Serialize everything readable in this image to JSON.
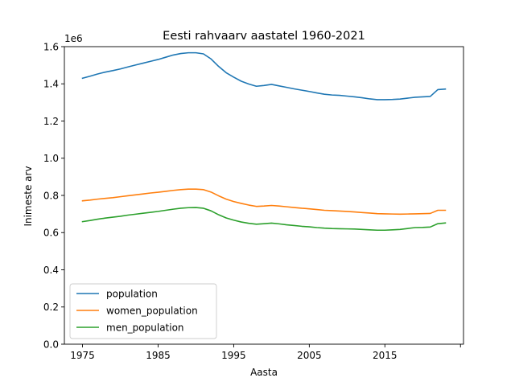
{
  "chart_data": {
    "type": "line",
    "title": "Eesti rahvaarv aastatel 1960-2021",
    "xlabel": "Aasta",
    "ylabel": "Inimeste arv",
    "y_offset_label": "1e6",
    "xlim": [
      1972.6,
      2025.4
    ],
    "ylim": [
      0,
      1.6
    ],
    "x_ticks": [
      1975,
      1985,
      1995,
      2005,
      2015,
      2025
    ],
    "x_tick_labels": [
      "1975",
      "1985",
      "1995",
      "2005",
      "2015",
      ""
    ],
    "y_ticks": [
      0.0,
      0.2,
      0.4,
      0.6,
      0.8,
      1.0,
      1.2,
      1.4,
      1.6
    ],
    "y_tick_labels": [
      "0.0",
      "0.2",
      "0.4",
      "0.6",
      "0.8",
      "1.0",
      "1.2",
      "1.4",
      "1.6"
    ],
    "legend_position": "lower-left",
    "grid": false,
    "x": [
      1975,
      1976,
      1977,
      1978,
      1979,
      1980,
      1981,
      1982,
      1983,
      1984,
      1985,
      1986,
      1987,
      1988,
      1989,
      1990,
      1991,
      1992,
      1993,
      1994,
      1995,
      1996,
      1997,
      1998,
      1999,
      2000,
      2001,
      2002,
      2003,
      2004,
      2005,
      2006,
      2007,
      2008,
      2009,
      2010,
      2011,
      2012,
      2013,
      2014,
      2015,
      2016,
      2017,
      2018,
      2019,
      2020,
      2021,
      2022,
      2023
    ],
    "series": [
      {
        "name": "population",
        "color": "#1f77b4",
        "values": [
          1.43,
          1.441,
          1.453,
          1.463,
          1.471,
          1.48,
          1.491,
          1.501,
          1.511,
          1.521,
          1.531,
          1.543,
          1.555,
          1.563,
          1.567,
          1.567,
          1.561,
          1.534,
          1.494,
          1.46,
          1.436,
          1.414,
          1.399,
          1.387,
          1.391,
          1.397,
          1.389,
          1.381,
          1.373,
          1.366,
          1.359,
          1.351,
          1.344,
          1.34,
          1.338,
          1.334,
          1.33,
          1.325,
          1.319,
          1.315,
          1.315,
          1.316,
          1.318,
          1.323,
          1.328,
          1.33,
          1.332,
          1.369,
          1.372
        ]
      },
      {
        "name": "women_population",
        "color": "#ff7f0e",
        "values": [
          0.771,
          0.775,
          0.78,
          0.784,
          0.788,
          0.793,
          0.798,
          0.803,
          0.808,
          0.813,
          0.817,
          0.822,
          0.827,
          0.831,
          0.834,
          0.834,
          0.831,
          0.818,
          0.798,
          0.78,
          0.767,
          0.757,
          0.748,
          0.741,
          0.743,
          0.746,
          0.743,
          0.739,
          0.735,
          0.731,
          0.728,
          0.724,
          0.72,
          0.718,
          0.716,
          0.714,
          0.711,
          0.708,
          0.705,
          0.702,
          0.701,
          0.7,
          0.699,
          0.7,
          0.701,
          0.702,
          0.703,
          0.72,
          0.72
        ]
      },
      {
        "name": "men_population",
        "color": "#2ca02c",
        "values": [
          0.659,
          0.665,
          0.672,
          0.678,
          0.683,
          0.688,
          0.694,
          0.699,
          0.704,
          0.709,
          0.714,
          0.72,
          0.726,
          0.731,
          0.734,
          0.735,
          0.731,
          0.717,
          0.696,
          0.679,
          0.667,
          0.657,
          0.65,
          0.645,
          0.648,
          0.651,
          0.647,
          0.642,
          0.638,
          0.634,
          0.631,
          0.627,
          0.624,
          0.622,
          0.621,
          0.62,
          0.619,
          0.617,
          0.615,
          0.613,
          0.613,
          0.615,
          0.617,
          0.622,
          0.627,
          0.628,
          0.63,
          0.648,
          0.652
        ]
      }
    ]
  }
}
